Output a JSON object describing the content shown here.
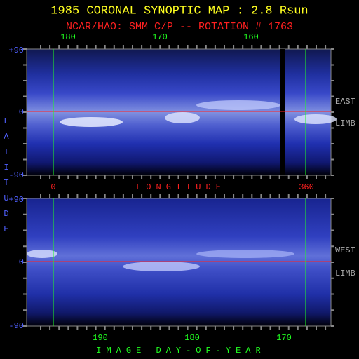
{
  "header": {
    "title": "1985 CORONAL SYNOPTIC MAP : 2.8 Rsun",
    "subtitle": "NCAR/HAO: SMM C/P -- ROTATION # 1763"
  },
  "top_panel": {
    "x_ticks": [
      "180",
      "170",
      "160"
    ],
    "y_labels": [
      "+90",
      "0",
      "-90"
    ],
    "side_labels": [
      "EAST",
      "LIMB"
    ]
  },
  "longitude_axis": {
    "start": "0",
    "label": "LONGITUDE",
    "end": "360"
  },
  "latitude_label": "LATITUDE",
  "bottom_panel": {
    "x_ticks": [
      "190",
      "180",
      "170"
    ],
    "y_labels": [
      "+90",
      "0",
      "-90"
    ],
    "side_labels": [
      "WEST",
      "LIMB"
    ]
  },
  "day_axis_label": "IMAGE DAY-OF-YEAR"
}
